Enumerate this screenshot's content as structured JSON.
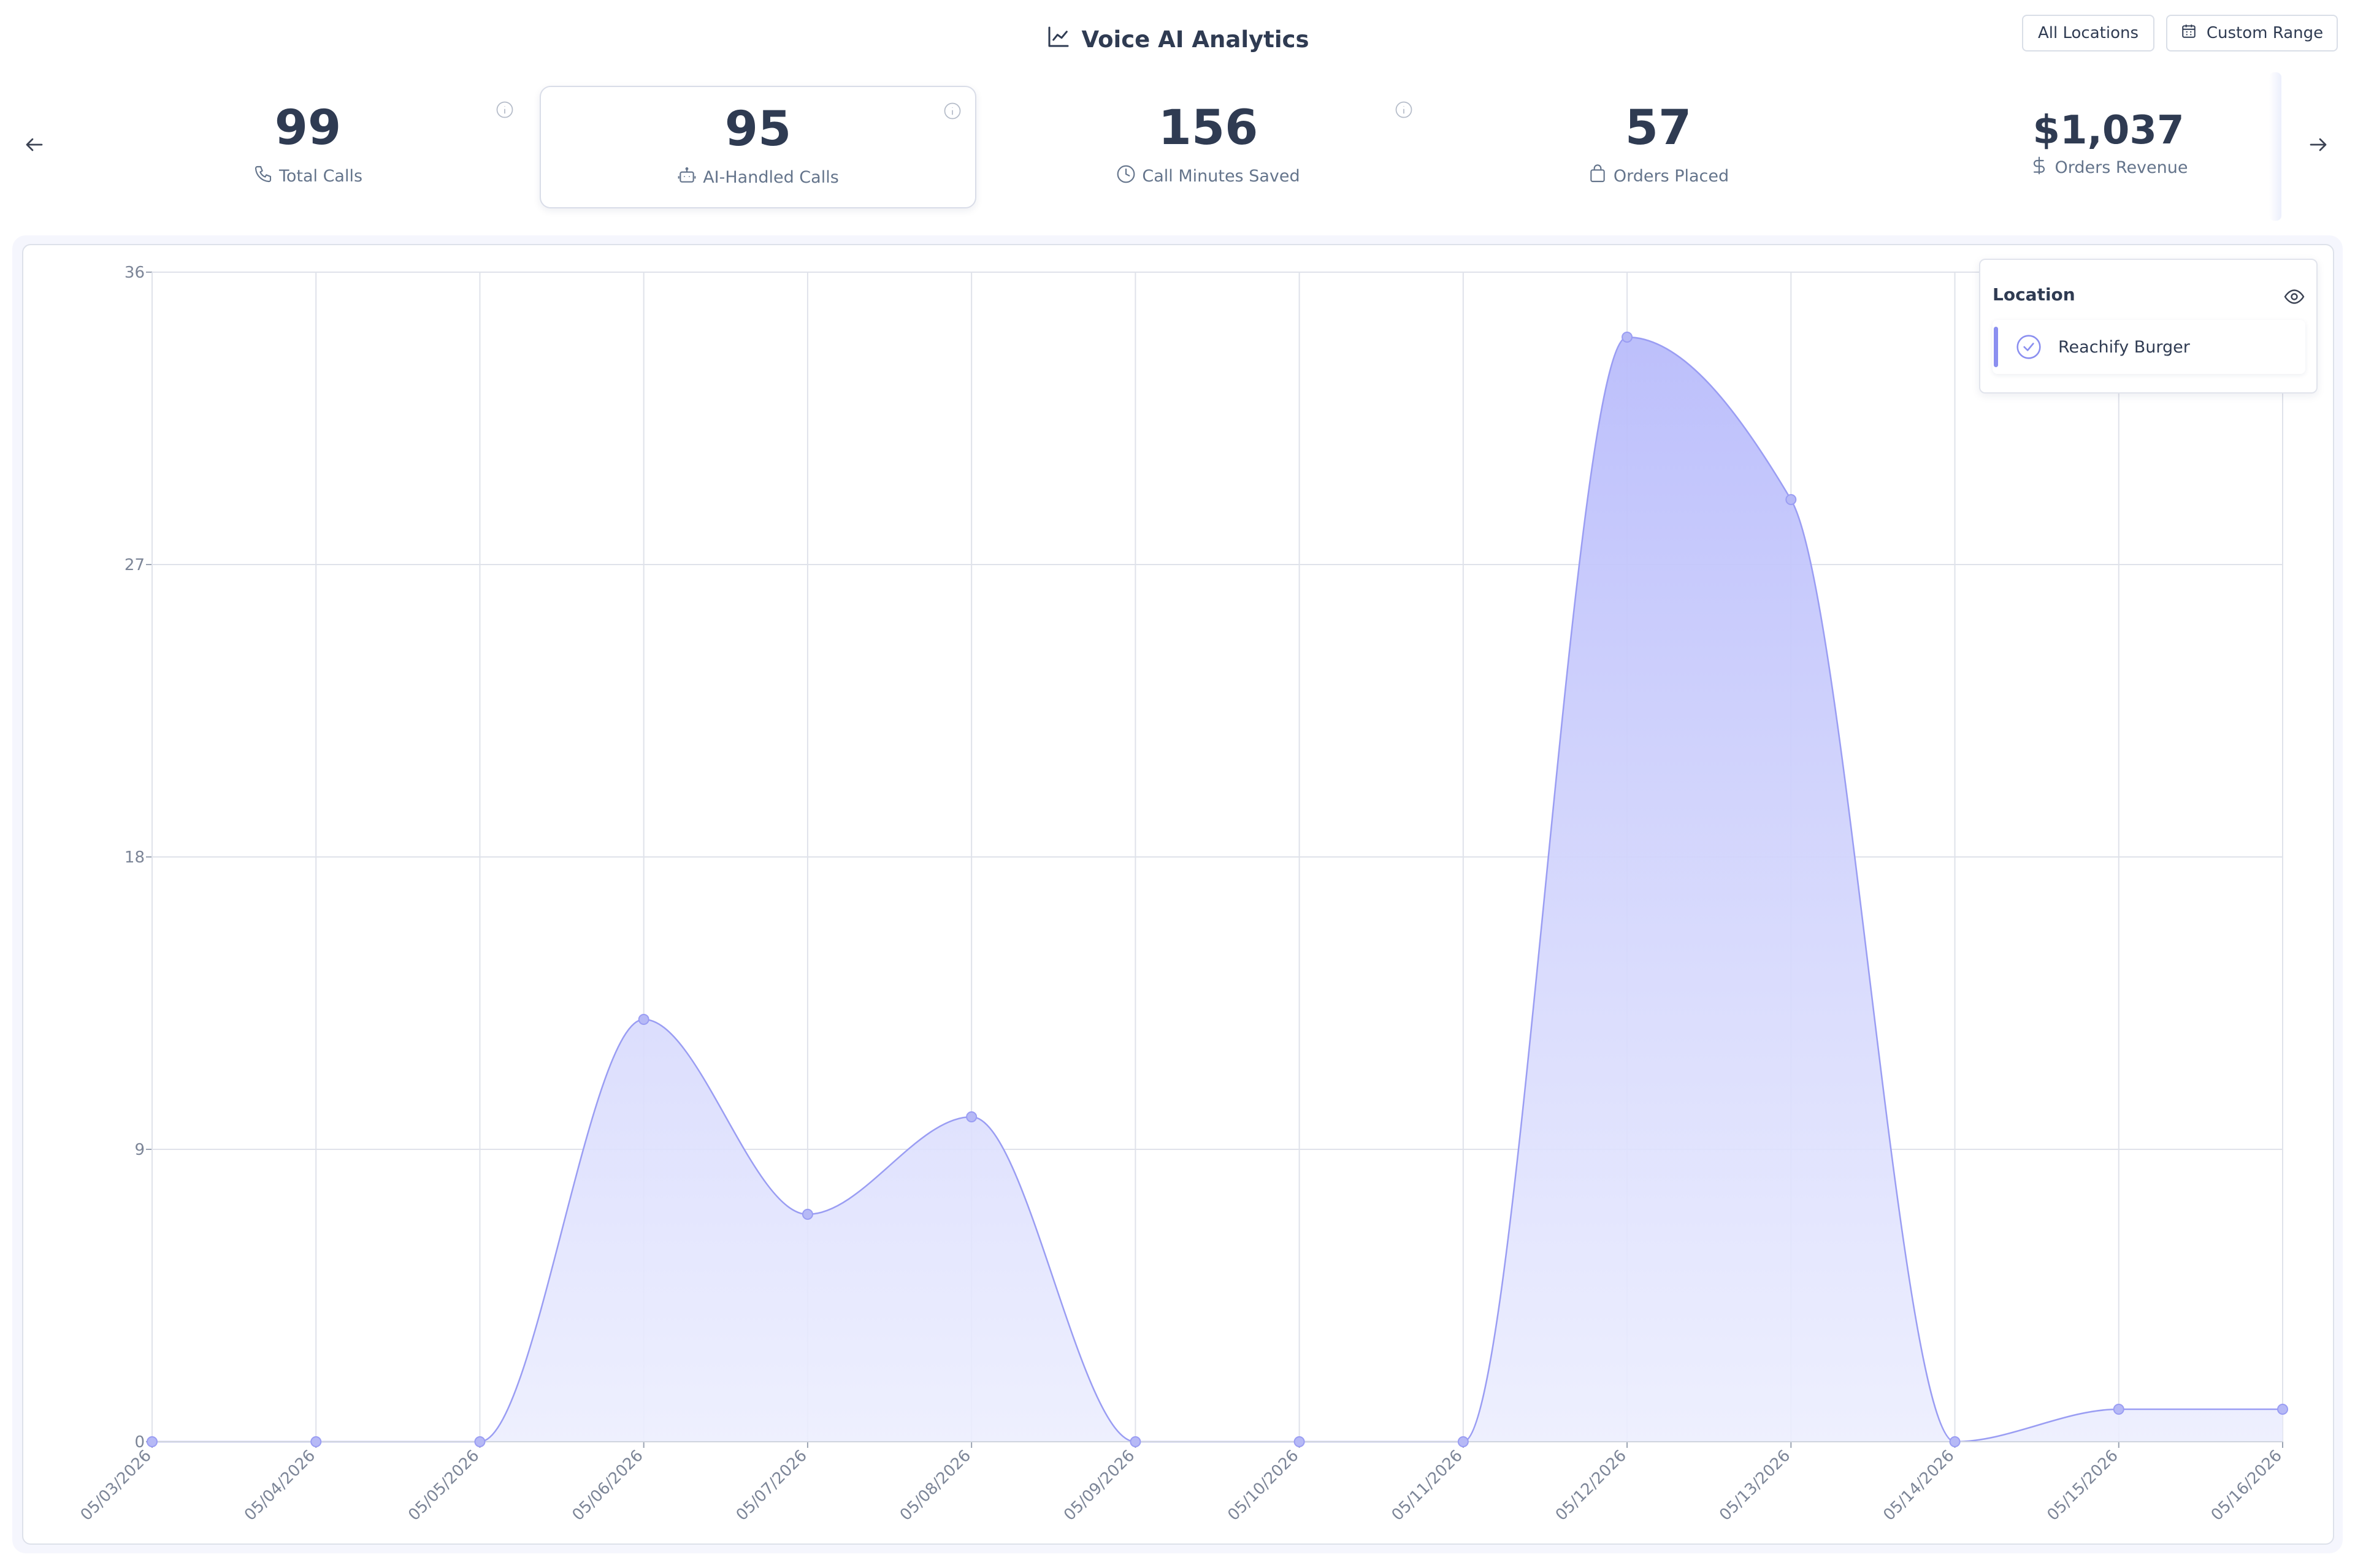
{
  "header": {
    "title": "Voice AI Analytics",
    "title_icon": "line-chart-icon",
    "locations_button": "All Locations",
    "range_button": "Custom Range",
    "range_icon": "calendar-icon"
  },
  "kpis": [
    {
      "value": "99",
      "label": "Total Calls",
      "icon": "phone-icon"
    },
    {
      "value": "95",
      "label": "AI-Handled Calls",
      "icon": "robot-icon",
      "active": true
    },
    {
      "value": "156",
      "label": "Call Minutes Saved",
      "icon": "clock-icon"
    },
    {
      "value": "57",
      "label": "Orders Placed",
      "icon": "shopping-bag-icon"
    },
    {
      "value": "$1,037",
      "label": "Orders Revenue",
      "icon": "dollar-icon"
    }
  ],
  "legend": {
    "title": "Location",
    "items": [
      {
        "label": "Reachify Burger",
        "checked": true
      }
    ]
  },
  "colors": {
    "accent": "#8b8ff0",
    "area_top": "#b9bcfb",
    "area_bottom": "#eceefe",
    "text": "#2f3b52",
    "muted": "#64748b",
    "grid": "#dfe2ea"
  },
  "chart_data": {
    "type": "area",
    "x": [
      "05/03/2026",
      "05/04/2026",
      "05/05/2026",
      "05/06/2026",
      "05/07/2026",
      "05/08/2026",
      "05/09/2026",
      "05/10/2026",
      "05/11/2026",
      "05/12/2026",
      "05/13/2026",
      "05/14/2026",
      "05/15/2026",
      "05/16/2026"
    ],
    "series": [
      {
        "name": "Reachify Burger",
        "values": [
          0,
          0,
          0,
          13,
          7,
          10,
          0,
          0,
          0,
          34,
          29,
          0,
          1,
          1
        ]
      }
    ],
    "yticks": [
      0,
      9,
      18,
      27,
      36
    ],
    "ylim": [
      0,
      36
    ],
    "grid": true,
    "legend_position": "top-right"
  }
}
